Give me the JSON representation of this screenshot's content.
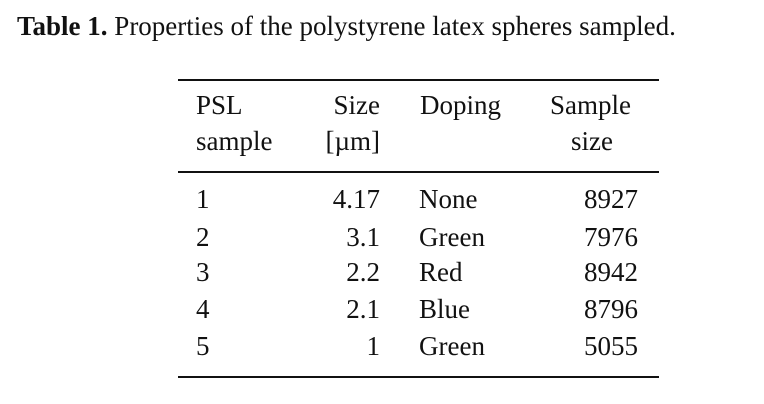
{
  "caption": {
    "label": "Table 1.",
    "text": " Properties of the polystyrene latex spheres sampled."
  },
  "table": {
    "headers": {
      "sample_line1": "PSL",
      "sample_line2": "sample",
      "size_line1": "Size",
      "size_line2": "[µm]",
      "doping": "Doping",
      "n_line1": "Sample",
      "n_line2": "size"
    },
    "rows": [
      {
        "sample": "1",
        "size": "4.17",
        "doping": "None",
        "n": "8927"
      },
      {
        "sample": "2",
        "size": "3.1",
        "doping": "Green",
        "n": "7976"
      },
      {
        "sample": "3",
        "size": "2.2",
        "doping": "Red",
        "n": "8942"
      },
      {
        "sample": "4",
        "size": "2.1",
        "doping": "Blue",
        "n": "8796"
      },
      {
        "sample": "5",
        "size": "1",
        "doping": "Green",
        "n": "5055"
      }
    ]
  }
}
